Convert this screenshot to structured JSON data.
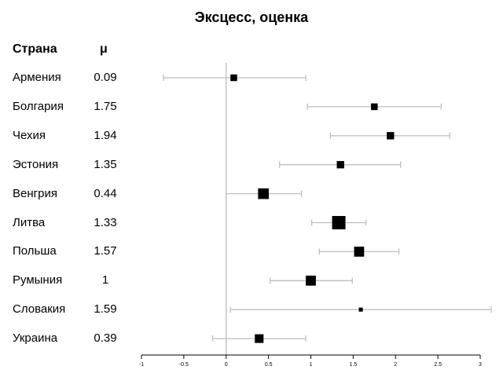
{
  "chart_data": {
    "type": "forest",
    "title": "Эксцесс, оценка",
    "columns": {
      "country": "Страна",
      "mu": "μ"
    },
    "rows": [
      {
        "country": "Армения",
        "mu_label": "0.09",
        "estimate": 0.09,
        "lower": -0.74,
        "upper": 0.94,
        "weight": 1.0
      },
      {
        "country": "Болгария",
        "mu_label": "1.75",
        "estimate": 1.75,
        "lower": 0.96,
        "upper": 2.54,
        "weight": 1.0
      },
      {
        "country": "Чехия",
        "mu_label": "1.94",
        "estimate": 1.94,
        "lower": 1.23,
        "upper": 2.64,
        "weight": 1.1
      },
      {
        "country": "Эстония",
        "mu_label": "1.35",
        "estimate": 1.35,
        "lower": 0.63,
        "upper": 2.06,
        "weight": 1.1
      },
      {
        "country": "Венгрия",
        "mu_label": "0.44",
        "estimate": 0.44,
        "lower": 0.0,
        "upper": 0.89,
        "weight": 1.6
      },
      {
        "country": "Литва",
        "mu_label": "1.33",
        "estimate": 1.33,
        "lower": 1.01,
        "upper": 1.65,
        "weight": 2.0
      },
      {
        "country": "Польша",
        "mu_label": "1.57",
        "estimate": 1.57,
        "lower": 1.1,
        "upper": 2.04,
        "weight": 1.5
      },
      {
        "country": "Румыния",
        "mu_label": "1",
        "estimate": 1.0,
        "lower": 0.52,
        "upper": 1.49,
        "weight": 1.5
      },
      {
        "country": "Словакия",
        "mu_label": "1.59",
        "estimate": 1.59,
        "lower": 0.05,
        "upper": 3.13,
        "weight": 0.6
      },
      {
        "country": "Украина",
        "mu_label": "0.39",
        "estimate": 0.39,
        "lower": -0.16,
        "upper": 0.94,
        "weight": 1.3
      }
    ],
    "x_ticks": [
      "-1",
      "-0.5",
      "0",
      "0.5",
      "1",
      "1.5",
      "2",
      "2.5",
      "3"
    ],
    "xlim": [
      -1,
      3
    ],
    "reference_line": 0,
    "colors": {
      "marker": "#000000",
      "ci": "#bfbfbf",
      "axis": "#000000"
    }
  }
}
